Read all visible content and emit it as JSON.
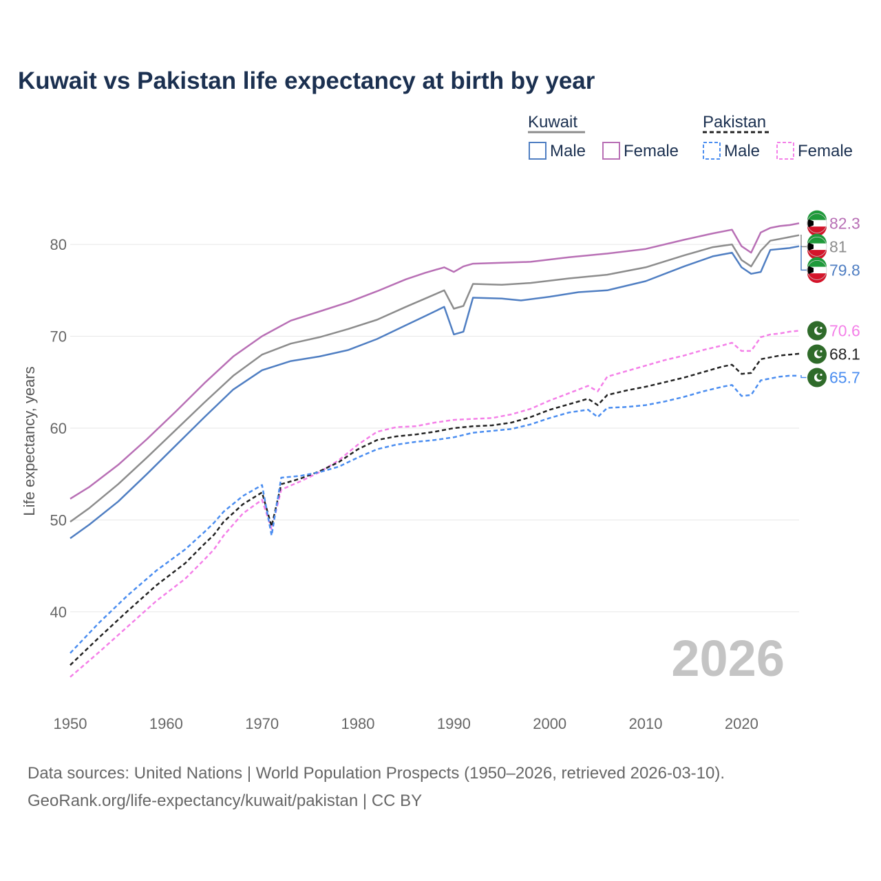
{
  "chart_data": {
    "type": "line",
    "title": "Kuwait vs Pakistan life expectancy at birth by year",
    "xlabel": "",
    "ylabel": "Life expectancy, years",
    "xlim": [
      1950,
      2026
    ],
    "ylim": [
      31,
      86
    ],
    "x_ticks": [
      1950,
      1960,
      1970,
      1980,
      1990,
      2000,
      2010,
      2020
    ],
    "y_ticks": [
      40,
      50,
      60,
      70,
      80
    ],
    "grid": true,
    "year_watermark": "2026",
    "legend": {
      "groups": [
        {
          "name": "Kuwait",
          "style": "solid",
          "items": [
            "Male",
            "Female"
          ]
        },
        {
          "name": "Pakistan",
          "style": "dashed",
          "items": [
            "Male",
            "Female"
          ]
        }
      ]
    },
    "series": [
      {
        "name": "Kuwait Female",
        "country": "Kuwait",
        "color": "#b86fb5",
        "dash": false,
        "end_label": "82.3",
        "points": [
          [
            1950,
            52.3
          ],
          [
            1952,
            53.6
          ],
          [
            1955,
            56.0
          ],
          [
            1958,
            58.8
          ],
          [
            1961,
            61.8
          ],
          [
            1964,
            64.9
          ],
          [
            1967,
            67.8
          ],
          [
            1970,
            70.0
          ],
          [
            1973,
            71.7
          ],
          [
            1976,
            72.7
          ],
          [
            1979,
            73.7
          ],
          [
            1982,
            74.9
          ],
          [
            1985,
            76.2
          ],
          [
            1987,
            76.9
          ],
          [
            1989,
            77.5
          ],
          [
            1990,
            77.0
          ],
          [
            1991,
            77.6
          ],
          [
            1992,
            77.9
          ],
          [
            1995,
            78.0
          ],
          [
            1998,
            78.1
          ],
          [
            2002,
            78.6
          ],
          [
            2006,
            79.0
          ],
          [
            2010,
            79.5
          ],
          [
            2014,
            80.5
          ],
          [
            2017,
            81.2
          ],
          [
            2019,
            81.6
          ],
          [
            2020,
            79.8
          ],
          [
            2021,
            79.1
          ],
          [
            2022,
            81.3
          ],
          [
            2023,
            81.8
          ],
          [
            2024,
            82.0
          ],
          [
            2025,
            82.1
          ],
          [
            2026,
            82.3
          ]
        ]
      },
      {
        "name": "Kuwait Total",
        "country": "Kuwait",
        "color": "#8c8c8c",
        "dash": false,
        "end_label": "81",
        "points": [
          [
            1950,
            49.8
          ],
          [
            1952,
            51.3
          ],
          [
            1955,
            53.9
          ],
          [
            1958,
            56.8
          ],
          [
            1961,
            59.8
          ],
          [
            1964,
            62.8
          ],
          [
            1967,
            65.7
          ],
          [
            1970,
            68.0
          ],
          [
            1973,
            69.2
          ],
          [
            1976,
            69.9
          ],
          [
            1979,
            70.8
          ],
          [
            1982,
            71.8
          ],
          [
            1985,
            73.2
          ],
          [
            1987,
            74.1
          ],
          [
            1989,
            75.0
          ],
          [
            1990,
            73.0
          ],
          [
            1991,
            73.3
          ],
          [
            1992,
            75.7
          ],
          [
            1995,
            75.6
          ],
          [
            1998,
            75.8
          ],
          [
            2002,
            76.3
          ],
          [
            2006,
            76.7
          ],
          [
            2010,
            77.5
          ],
          [
            2014,
            78.8
          ],
          [
            2017,
            79.7
          ],
          [
            2019,
            80.0
          ],
          [
            2020,
            78.3
          ],
          [
            2021,
            77.6
          ],
          [
            2022,
            79.3
          ],
          [
            2023,
            80.4
          ],
          [
            2024,
            80.6
          ],
          [
            2025,
            80.8
          ],
          [
            2026,
            81.0
          ]
        ]
      },
      {
        "name": "Kuwait Male",
        "country": "Kuwait",
        "color": "#4f7ec2",
        "dash": false,
        "end_label": "79.8",
        "points": [
          [
            1950,
            48.0
          ],
          [
            1952,
            49.5
          ],
          [
            1955,
            52.0
          ],
          [
            1958,
            55.0
          ],
          [
            1961,
            58.1
          ],
          [
            1964,
            61.2
          ],
          [
            1967,
            64.2
          ],
          [
            1970,
            66.3
          ],
          [
            1973,
            67.3
          ],
          [
            1976,
            67.8
          ],
          [
            1979,
            68.5
          ],
          [
            1982,
            69.7
          ],
          [
            1985,
            71.2
          ],
          [
            1987,
            72.2
          ],
          [
            1989,
            73.2
          ],
          [
            1990,
            70.2
          ],
          [
            1991,
            70.5
          ],
          [
            1992,
            74.2
          ],
          [
            1995,
            74.1
          ],
          [
            1997,
            73.9
          ],
          [
            2000,
            74.3
          ],
          [
            2003,
            74.8
          ],
          [
            2006,
            75.0
          ],
          [
            2010,
            76.0
          ],
          [
            2014,
            77.6
          ],
          [
            2017,
            78.7
          ],
          [
            2019,
            79.1
          ],
          [
            2020,
            77.5
          ],
          [
            2021,
            76.8
          ],
          [
            2022,
            77.0
          ],
          [
            2023,
            79.4
          ],
          [
            2024,
            79.5
          ],
          [
            2025,
            79.6
          ],
          [
            2026,
            79.8
          ]
        ]
      },
      {
        "name": "Pakistan Female",
        "country": "Pakistan",
        "color": "#f47fe8",
        "dash": true,
        "end_label": "70.6",
        "points": [
          [
            1950,
            32.9
          ],
          [
            1953,
            35.6
          ],
          [
            1956,
            38.4
          ],
          [
            1959,
            41.2
          ],
          [
            1962,
            43.6
          ],
          [
            1964,
            45.7
          ],
          [
            1965,
            46.8
          ],
          [
            1966,
            48.3
          ],
          [
            1968,
            50.7
          ],
          [
            1970,
            52.2
          ],
          [
            1971,
            49.0
          ],
          [
            1972,
            53.3
          ],
          [
            1974,
            54.2
          ],
          [
            1976,
            55.2
          ],
          [
            1978,
            56.5
          ],
          [
            1980,
            58.2
          ],
          [
            1982,
            59.6
          ],
          [
            1984,
            60.1
          ],
          [
            1986,
            60.2
          ],
          [
            1988,
            60.6
          ],
          [
            1990,
            60.9
          ],
          [
            1992,
            61.0
          ],
          [
            1994,
            61.1
          ],
          [
            1996,
            61.5
          ],
          [
            1998,
            62.1
          ],
          [
            2000,
            63.0
          ],
          [
            2002,
            63.8
          ],
          [
            2004,
            64.6
          ],
          [
            2005,
            64.0
          ],
          [
            2006,
            65.6
          ],
          [
            2008,
            66.2
          ],
          [
            2010,
            66.8
          ],
          [
            2012,
            67.4
          ],
          [
            2014,
            67.9
          ],
          [
            2016,
            68.5
          ],
          [
            2018,
            69.0
          ],
          [
            2019,
            69.3
          ],
          [
            2020,
            68.4
          ],
          [
            2021,
            68.4
          ],
          [
            2022,
            69.9
          ],
          [
            2023,
            70.2
          ],
          [
            2024,
            70.3
          ],
          [
            2025,
            70.5
          ],
          [
            2026,
            70.6
          ]
        ]
      },
      {
        "name": "Pakistan Total",
        "country": "Pakistan",
        "color": "#222222",
        "dash": true,
        "end_label": "68.1",
        "points": [
          [
            1950,
            34.2
          ],
          [
            1953,
            37.2
          ],
          [
            1956,
            40.1
          ],
          [
            1959,
            42.9
          ],
          [
            1962,
            45.3
          ],
          [
            1964,
            47.4
          ],
          [
            1965,
            48.4
          ],
          [
            1966,
            49.8
          ],
          [
            1968,
            51.7
          ],
          [
            1970,
            53.0
          ],
          [
            1971,
            49.3
          ],
          [
            1972,
            53.9
          ],
          [
            1974,
            54.5
          ],
          [
            1976,
            55.3
          ],
          [
            1978,
            56.3
          ],
          [
            1980,
            57.7
          ],
          [
            1982,
            58.7
          ],
          [
            1984,
            59.1
          ],
          [
            1986,
            59.3
          ],
          [
            1988,
            59.6
          ],
          [
            1990,
            60.0
          ],
          [
            1992,
            60.2
          ],
          [
            1994,
            60.3
          ],
          [
            1996,
            60.6
          ],
          [
            1998,
            61.2
          ],
          [
            2000,
            62.0
          ],
          [
            2002,
            62.6
          ],
          [
            2004,
            63.2
          ],
          [
            2005,
            62.5
          ],
          [
            2006,
            63.6
          ],
          [
            2008,
            64.1
          ],
          [
            2010,
            64.5
          ],
          [
            2012,
            65.0
          ],
          [
            2014,
            65.5
          ],
          [
            2016,
            66.1
          ],
          [
            2018,
            66.7
          ],
          [
            2019,
            66.9
          ],
          [
            2020,
            65.9
          ],
          [
            2021,
            66.0
          ],
          [
            2022,
            67.5
          ],
          [
            2023,
            67.7
          ],
          [
            2024,
            67.9
          ],
          [
            2025,
            68.0
          ],
          [
            2026,
            68.1
          ]
        ]
      },
      {
        "name": "Pakistan Male",
        "country": "Pakistan",
        "color": "#4a8df0",
        "dash": true,
        "end_label": "65.7",
        "points": [
          [
            1950,
            35.5
          ],
          [
            1953,
            38.8
          ],
          [
            1956,
            41.8
          ],
          [
            1959,
            44.5
          ],
          [
            1962,
            46.8
          ],
          [
            1964,
            48.7
          ],
          [
            1965,
            49.7
          ],
          [
            1966,
            50.9
          ],
          [
            1968,
            52.6
          ],
          [
            1970,
            53.8
          ],
          [
            1971,
            48.3
          ],
          [
            1972,
            54.6
          ],
          [
            1974,
            54.8
          ],
          [
            1976,
            55.2
          ],
          [
            1978,
            55.8
          ],
          [
            1980,
            56.8
          ],
          [
            1982,
            57.7
          ],
          [
            1984,
            58.2
          ],
          [
            1986,
            58.5
          ],
          [
            1988,
            58.7
          ],
          [
            1990,
            59.0
          ],
          [
            1992,
            59.5
          ],
          [
            1994,
            59.7
          ],
          [
            1996,
            59.9
          ],
          [
            1998,
            60.4
          ],
          [
            2000,
            61.1
          ],
          [
            2002,
            61.7
          ],
          [
            2004,
            62.0
          ],
          [
            2005,
            61.2
          ],
          [
            2006,
            62.2
          ],
          [
            2008,
            62.3
          ],
          [
            2010,
            62.5
          ],
          [
            2012,
            62.9
          ],
          [
            2014,
            63.4
          ],
          [
            2016,
            64.0
          ],
          [
            2018,
            64.5
          ],
          [
            2019,
            64.7
          ],
          [
            2020,
            63.5
          ],
          [
            2021,
            63.6
          ],
          [
            2022,
            65.2
          ],
          [
            2023,
            65.4
          ],
          [
            2024,
            65.6
          ],
          [
            2025,
            65.7
          ],
          [
            2026,
            65.7
          ]
        ]
      }
    ]
  },
  "footer": {
    "source_line": "Data sources: United Nations | World Population Prospects (1950–2026, retrieved 2026-03-10).",
    "url_line": "GeoRank.org/life-expectancy/kuwait/pakistan | CC BY"
  }
}
